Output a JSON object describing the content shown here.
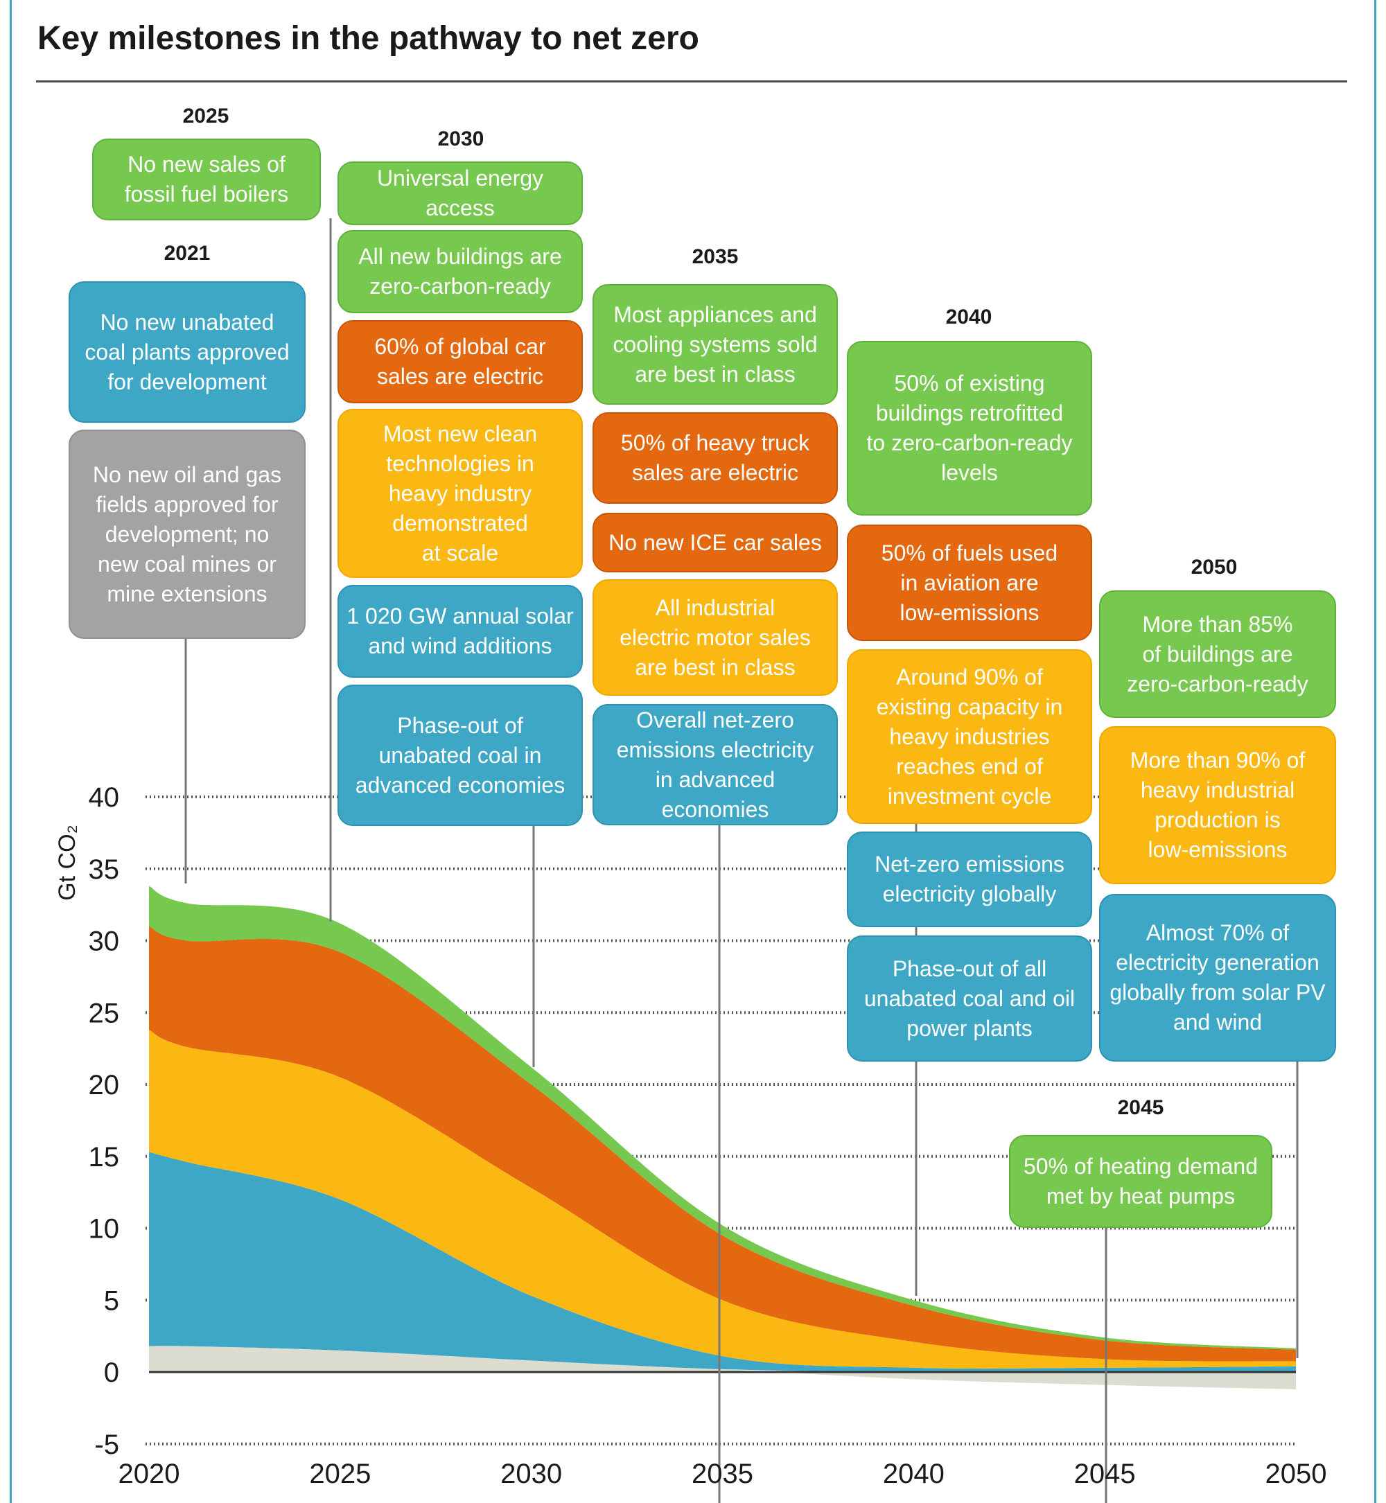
{
  "title": "Key milestones in the pathway to net zero",
  "colors": {
    "green": "#77c84f",
    "orange": "#e3680f",
    "yellow": "#fbb813",
    "blue": "#3ea7c6",
    "grey": "#a3a3a3",
    "beige": "#dcdcd0",
    "frame": "#3aa6b9"
  },
  "chart_data": {
    "type": "area",
    "stacked": true,
    "ylabel": "Gt CO₂",
    "xlim": [
      2020,
      2050
    ],
    "ylim": [
      -5,
      40
    ],
    "x_ticks": [
      "2020",
      "2025",
      "2030",
      "2035",
      "2040",
      "2045",
      "2050"
    ],
    "y_ticks": [
      "-5",
      "0",
      "5",
      "10",
      "15",
      "20",
      "25",
      "30",
      "35",
      "40"
    ],
    "grid": "dotted horizontal",
    "x": [
      2020,
      2021,
      2025,
      2030,
      2035,
      2040,
      2045,
      2050
    ],
    "series": [
      {
        "color": "beige",
        "values": [
          1.8,
          1.8,
          1.5,
          0.8,
          0.2,
          -0.5,
          -0.9,
          -1.2
        ]
      },
      {
        "color": "blue",
        "values": [
          13.5,
          12.8,
          10.5,
          4.5,
          0.9,
          0.3,
          0.3,
          0.4
        ]
      },
      {
        "color": "yellow",
        "values": [
          8.5,
          8.0,
          8.5,
          7.5,
          3.9,
          1.8,
          0.6,
          0.35
        ]
      },
      {
        "color": "orange",
        "values": [
          7.2,
          7.4,
          8.7,
          7.2,
          4.5,
          2.5,
          1.3,
          0.8
        ]
      },
      {
        "color": "green",
        "values": [
          2.8,
          2.6,
          2.0,
          1.2,
          0.7,
          0.4,
          0.2,
          0.1
        ]
      }
    ]
  },
  "milestones": {
    "y2021": {
      "year": "2021",
      "items": [
        {
          "text": "No new unabated\ncoal plants approved\nfor development",
          "color": "blue"
        },
        {
          "text": "No new oil and gas\nfields approved for\ndevelopment; no\nnew coal mines or\nmine extensions",
          "color": "grey"
        }
      ]
    },
    "y2025": {
      "year": "2025",
      "items": [
        {
          "text": "No new sales of\nfossil fuel boilers",
          "color": "green"
        }
      ]
    },
    "y2030": {
      "year": "2030",
      "items": [
        {
          "text": "Universal energy access",
          "color": "green"
        },
        {
          "text": "All new buildings are\nzero-carbon-ready",
          "color": "green"
        },
        {
          "text": "60% of global car\nsales are electric",
          "color": "orange"
        },
        {
          "text": "Most new clean\ntechnologies in\nheavy industry\ndemonstrated\nat scale",
          "color": "yellow"
        },
        {
          "text": "1 020 GW annual solar\nand wind additions",
          "color": "blue"
        },
        {
          "text": "Phase-out of\nunabated coal in\nadvanced economies",
          "color": "blue"
        }
      ]
    },
    "y2035": {
      "year": "2035",
      "items": [
        {
          "text": "Most appliances and\ncooling systems sold\nare best in class",
          "color": "green"
        },
        {
          "text": "50% of heavy truck\nsales are electric",
          "color": "orange"
        },
        {
          "text": "No new ICE car sales",
          "color": "orange"
        },
        {
          "text": "All industrial\nelectric motor sales\nare best in class",
          "color": "yellow"
        },
        {
          "text": "Overall net-zero\nemissions electricity\nin advanced\neconomies",
          "color": "blue"
        }
      ]
    },
    "y2040": {
      "year": "2040",
      "items": [
        {
          "text": "50% of existing\nbuildings retrofitted\nto zero-carbon-ready\nlevels",
          "color": "green"
        },
        {
          "text": "50% of fuels used\nin aviation are\nlow-emissions",
          "color": "orange"
        },
        {
          "text": "Around 90% of\nexisting capacity in\nheavy industries\nreaches end of\ninvestment cycle",
          "color": "yellow"
        },
        {
          "text": "Net-zero emissions\nelectricity globally",
          "color": "blue"
        },
        {
          "text": "Phase-out of all\nunabated coal and oil\npower plants",
          "color": "blue"
        }
      ]
    },
    "y2045": {
      "year": "2045",
      "items": [
        {
          "text": "50% of heating demand\nmet by heat pumps",
          "color": "green"
        }
      ]
    },
    "y2050": {
      "year": "2050",
      "items": [
        {
          "text": "More than 85%\nof buildings are\nzero-carbon-ready",
          "color": "green"
        },
        {
          "text": "More than 90% of\nheavy industrial\nproduction is\nlow-emissions",
          "color": "yellow"
        },
        {
          "text": "Almost 70% of\nelectricity generation\nglobally from solar PV\nand wind",
          "color": "blue"
        }
      ]
    }
  }
}
